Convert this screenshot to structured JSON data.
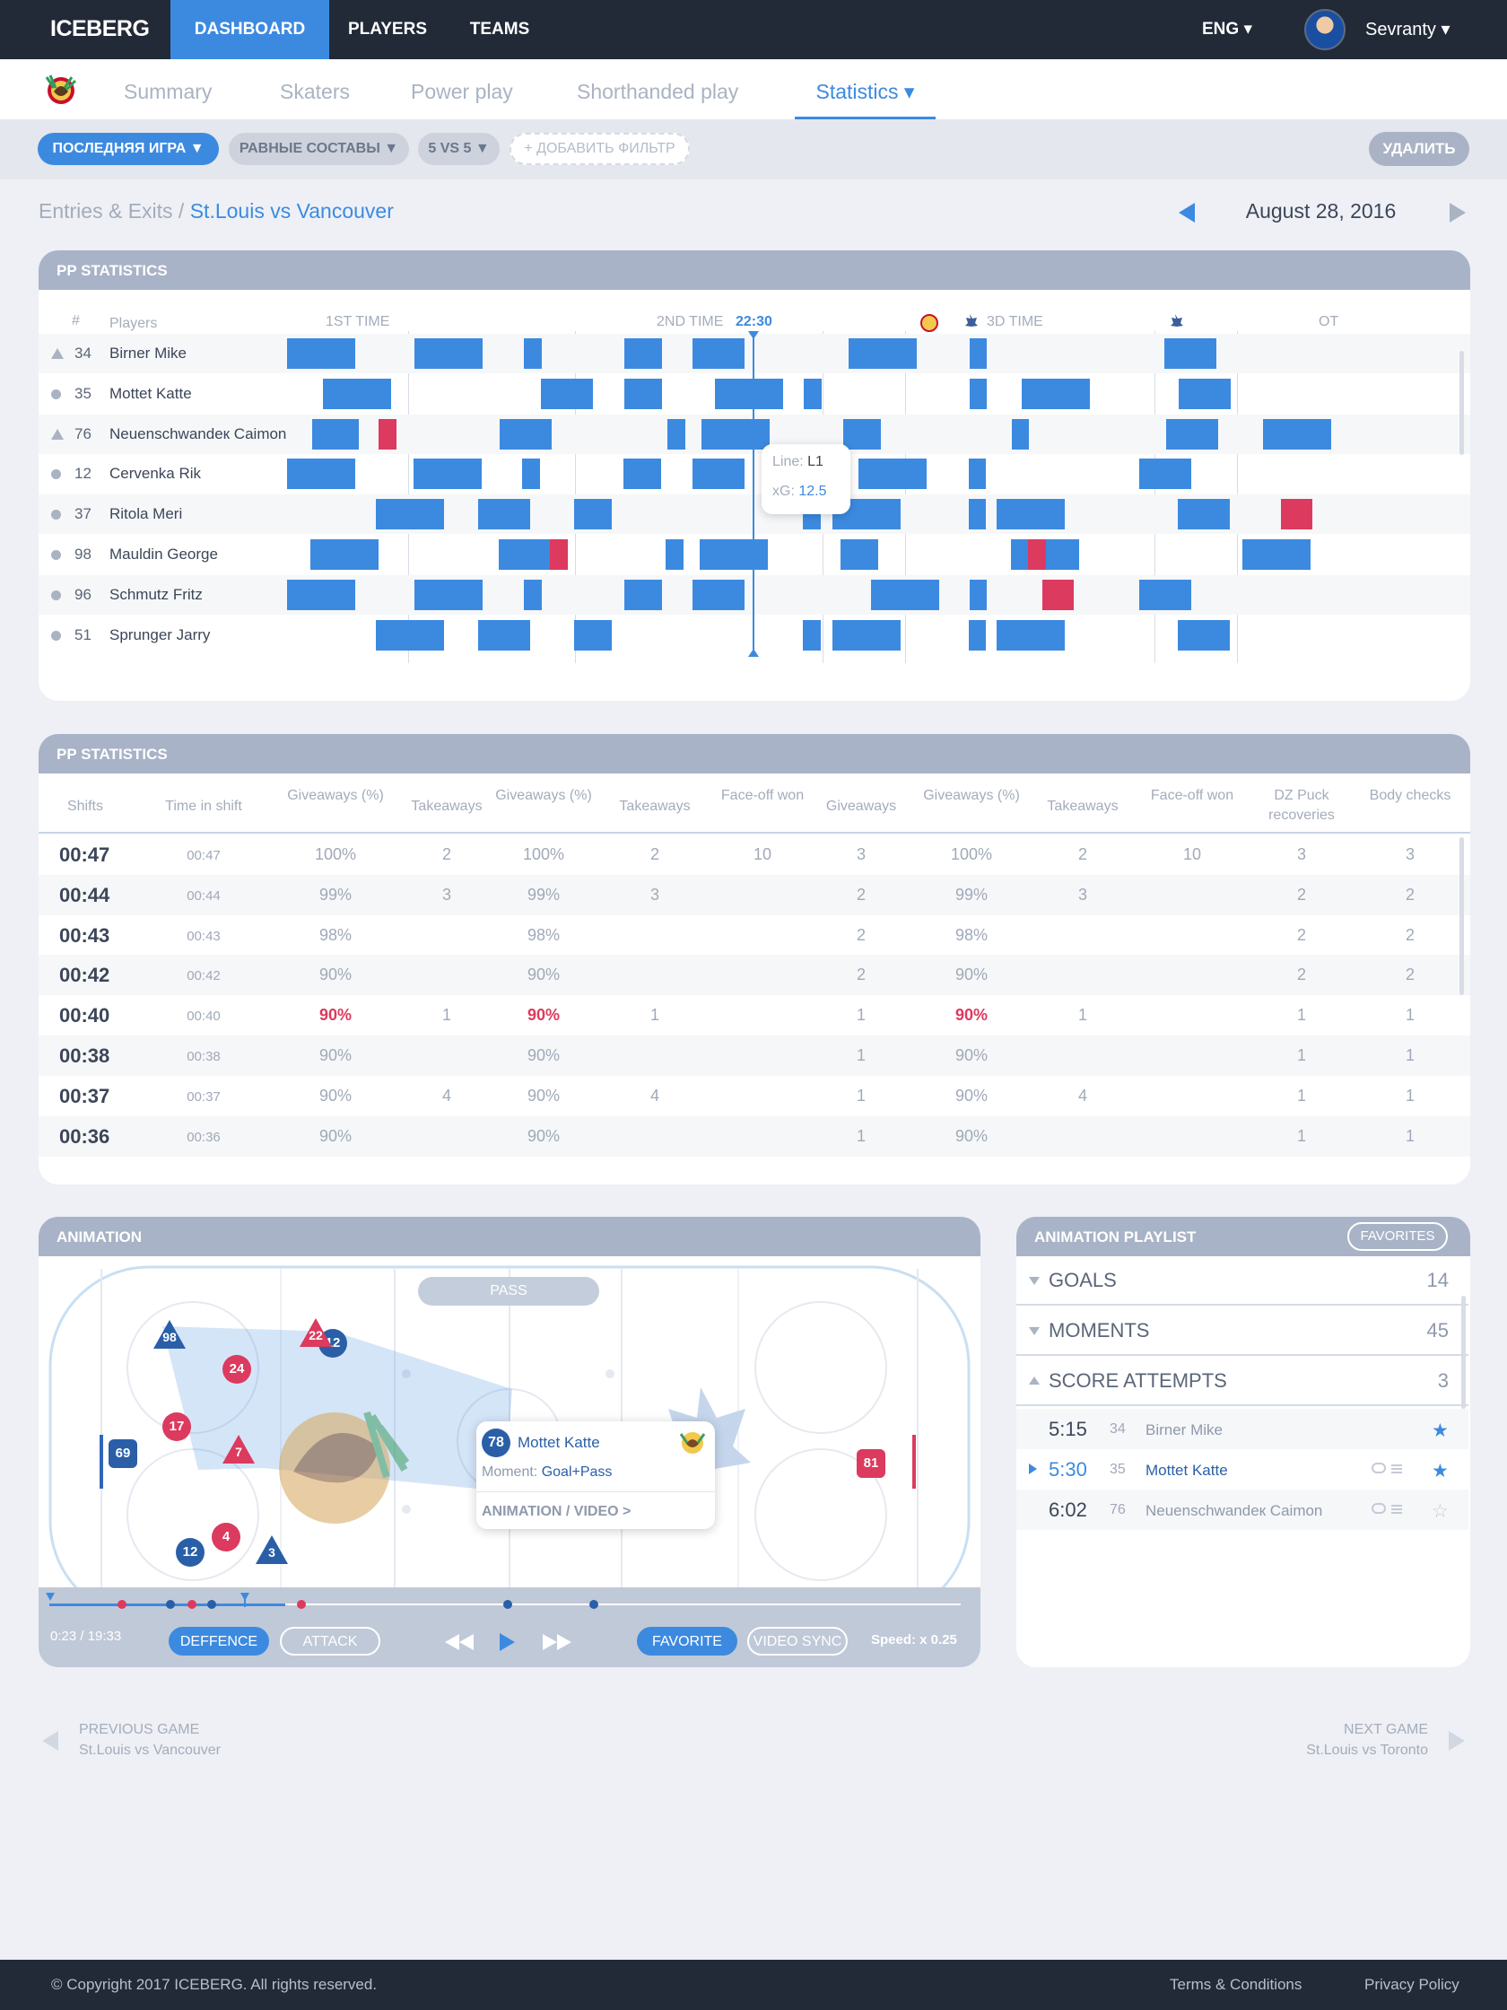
{
  "topnav": {
    "logo": "ICEBERG",
    "items": [
      {
        "label": "DASHBOARD",
        "active": true
      },
      {
        "label": "PLAYERS"
      },
      {
        "label": "TEAMS"
      }
    ],
    "lang": "ENG ▾",
    "user": "Sevranty ▾"
  },
  "subnav": {
    "tabs": [
      "Summary",
      "Skaters",
      "Power play",
      "Shorthanded play",
      "Statistics ▾"
    ],
    "active": "Statistics"
  },
  "filters": {
    "chips": [
      "ПОСЛЕДНЯЯ ИГРА  ▼",
      "РАВНЫЕ СОСТАВЫ  ▼",
      "5 VS 5  ▼",
      "+ ДОБАВИТЬ ФИЛЬТР"
    ],
    "delete": "УДАЛИТЬ"
  },
  "breadcrumb": {
    "parent": "Entries & Exits / ",
    "current": "St.Louis vs Vancouver"
  },
  "date": "August 28, 2016",
  "timeline": {
    "title": "PP STATISTICS",
    "hash": "#",
    "players_label": "Players",
    "periods": [
      "1ST TIME",
      "2ND TIME",
      "3D TIME",
      "OT"
    ],
    "current_time": "22:30",
    "players": [
      {
        "mark": "tri",
        "num": "34",
        "name": "Birner Mike"
      },
      {
        "mark": "dot",
        "num": "35",
        "name": "Mottet Katte"
      },
      {
        "mark": "tri",
        "num": "76",
        "name": "Neuenschwandeк Caimon"
      },
      {
        "mark": "dot",
        "num": "12",
        "name": "Cervenka Rik"
      },
      {
        "mark": "dot",
        "num": "37",
        "name": "Ritola Meri"
      },
      {
        "mark": "dot",
        "num": "98",
        "name": "Mauldin George"
      },
      {
        "mark": "dot",
        "num": "96",
        "name": "Schmutz Fritz"
      },
      {
        "mark": "dot",
        "num": "51",
        "name": "Sprunger Jarry"
      }
    ],
    "tooltip": {
      "line_label": "Line:",
      "line_value": "L1",
      "xg_label": "xG:",
      "xg_value": "12.5"
    }
  },
  "stats": {
    "title": "PP STATISTICS",
    "columns": [
      "Shifts",
      "Time in shift",
      "Giveaways (%)",
      "Takeaways",
      "Giveaways (%)",
      "Takeaways",
      "Face-off won",
      "Giveaways",
      "Giveaways (%)",
      "Takeaways",
      "Face-off won",
      "DZ Puck recoveries",
      "Body checks"
    ],
    "rows": [
      [
        "00:47",
        "00:47",
        "100%",
        "2",
        "100%",
        "2",
        "10",
        "3",
        "100%",
        "2",
        "10",
        "3",
        "3"
      ],
      [
        "00:44",
        "00:44",
        "99%",
        "3",
        "99%",
        "3",
        "",
        "2",
        "99%",
        "3",
        "",
        "2",
        "2"
      ],
      [
        "00:43",
        "00:43",
        "98%",
        "",
        "98%",
        "",
        "",
        "2",
        "98%",
        "",
        "",
        "2",
        "2"
      ],
      [
        "00:42",
        "00:42",
        "90%",
        "",
        "90%",
        "",
        "",
        "2",
        "90%",
        "",
        "",
        "2",
        "2"
      ],
      [
        "00:40",
        "00:40",
        "90%",
        "1",
        "90%",
        "1",
        "",
        "1",
        "90%",
        "1",
        "",
        "1",
        "1"
      ],
      [
        "00:38",
        "00:38",
        "90%",
        "",
        "90%",
        "",
        "",
        "1",
        "90%",
        "",
        "",
        "1",
        "1"
      ],
      [
        "00:37",
        "00:37",
        "90%",
        "4",
        "90%",
        "4",
        "",
        "1",
        "90%",
        "4",
        "",
        "1",
        "1"
      ],
      [
        "00:36",
        "00:36",
        "90%",
        "",
        "90%",
        "",
        "",
        "1",
        "90%",
        "",
        "",
        "1",
        "1"
      ]
    ],
    "highlight_row": 4
  },
  "animation": {
    "title": "ANIMATION",
    "pass_label": "PASS",
    "home_players": [
      "98",
      "12",
      "69",
      "12",
      "3"
    ],
    "away_players": [
      "22",
      "24",
      "17",
      "7",
      "4",
      "81"
    ],
    "popup": {
      "num": "78",
      "name": "Mottet Katte",
      "moment_label": "Moment:",
      "moment_value": "Goal+Pass",
      "link": "ANIMATION / VIDEO >"
    },
    "time": "0:23 / 19:33",
    "defence": "DEFFENCE",
    "attack": "ATTACK",
    "favorite": "FAVORITE",
    "video_sync": "VIDEO SYNC",
    "speed": "Speed: x 0.25",
    "progress": 0.35
  },
  "playlist": {
    "title": "ANIMATION PLAYLIST",
    "favorites": "FAVORITES",
    "sections": [
      {
        "label": "GOALS",
        "count": "14",
        "open": false
      },
      {
        "label": "MOMENTS",
        "count": "45",
        "open": false
      },
      {
        "label": "SCORE ATTEMPTS",
        "count": "3",
        "open": true
      }
    ],
    "items": [
      {
        "time": "5:15",
        "num": "34",
        "name": "Birner Mike",
        "starred": true
      },
      {
        "time": "5:30",
        "num": "35",
        "name": "Mottet Katte",
        "starred": true,
        "active": true
      },
      {
        "time": "6:02",
        "num": "76",
        "name": "Neuenschwandeк Caimon",
        "starred": false
      }
    ]
  },
  "pager": {
    "prev_label": "PREVIOUS GAME",
    "prev_game": "St.Louis vs Vancouver",
    "next_label": "NEXT GAME",
    "next_game": "St.Louis vs Toronto"
  },
  "footer": {
    "copyright": "© Copyright 2017 ICEBERG. All rights reserved.",
    "terms": "Terms & Conditions",
    "privacy": "Privacy Policy"
  },
  "colors": {
    "accent": "#3c8ae0",
    "alert": "#dc3a5e",
    "dark": "#222a38"
  }
}
